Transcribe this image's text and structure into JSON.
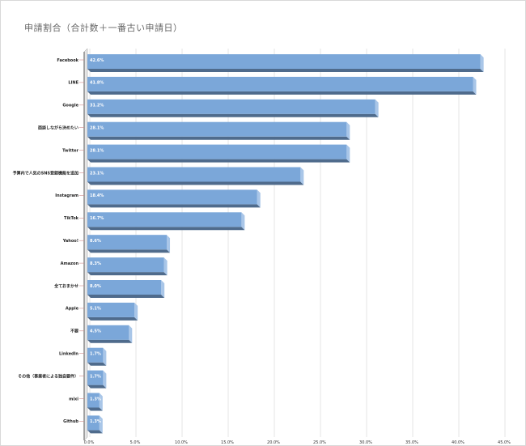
{
  "chart_data": {
    "type": "bar",
    "orientation": "horizontal",
    "style": "3d",
    "title": "申請割合（合計数＋一番古い申請日）",
    "categories": [
      "Facebook",
      "LINE",
      "Google",
      "面談しながら決めたい",
      "Twitter",
      "予算内で人気のSNS登録機能を追加",
      "Instagram",
      "TikTok",
      "Yahoo!",
      "Amazon",
      "全ておまかせ",
      "Apple",
      "不要",
      "LinkedIn",
      "その他（事業者による独自要件）",
      "mixi",
      "Github"
    ],
    "values": [
      42.6,
      41.8,
      31.2,
      28.1,
      28.1,
      23.1,
      18.4,
      16.7,
      8.6,
      8.3,
      8.0,
      5.1,
      4.5,
      1.7,
      1.7,
      1.3,
      1.3
    ],
    "value_labels": [
      "42.6%",
      "41.8%",
      "31.2%",
      "28.1%",
      "28.1%",
      "23.1%",
      "18.4%",
      "16.7%",
      "8.6%",
      "8.3%",
      "8.0%",
      "5.1%",
      "4.5%",
      "1.7%",
      "1.7%",
      "1.3%",
      "1.3%"
    ],
    "xlim": [
      0,
      45
    ],
    "x_ticks": [
      "0.0%",
      "5.0%",
      "10.0%",
      "15.0%",
      "20.0%",
      "25.0%",
      "30.0%",
      "35.0%",
      "40.0%",
      "45.0%"
    ],
    "xlabel": "",
    "ylabel": "",
    "grid": true,
    "legend": "none",
    "colors": {
      "bar": "#7ba7d9",
      "bar_side": "#a9c6e8",
      "bar_bottom": "#4f6b8c",
      "grid": "#e4e4e4"
    }
  }
}
